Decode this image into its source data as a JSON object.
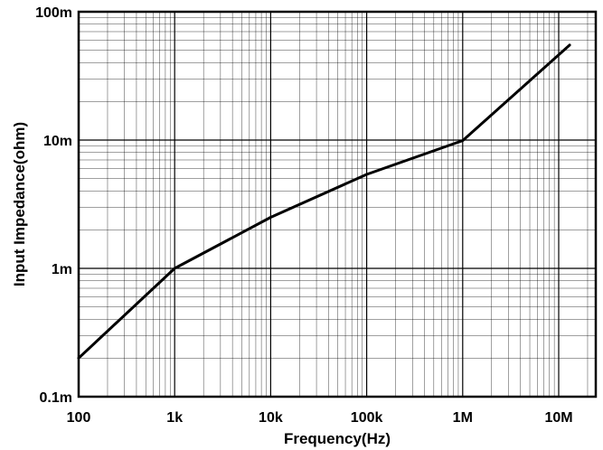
{
  "chart_data": {
    "type": "line",
    "title": "",
    "xlabel": "Frequency(Hz)",
    "ylabel": "Input Impedance(ohm)",
    "x_scale": "log",
    "y_scale": "log",
    "xlim": [
      100,
      20000000
    ],
    "ylim": [
      0.0001,
      0.1
    ],
    "grid": true,
    "legend": "none",
    "x_tick_values": [
      100,
      1000,
      10000,
      100000,
      1000000,
      10000000
    ],
    "x_tick_labels": [
      "100",
      "1k",
      "10k",
      "100k",
      "1M",
      "10M"
    ],
    "y_tick_values": [
      0.0001,
      0.001,
      0.01,
      0.1
    ],
    "y_tick_labels": [
      "0.1m",
      "1m",
      "10m",
      "100m"
    ],
    "series": [
      {
        "x": [
          100,
          1000,
          10000,
          100000,
          1000000,
          13000000
        ],
        "y": [
          0.0002,
          0.001,
          0.0025,
          0.0054,
          0.0099,
          0.055
        ]
      }
    ],
    "colors": {
      "line": "#000000",
      "grid": "#000000",
      "frame": "#000000"
    }
  }
}
